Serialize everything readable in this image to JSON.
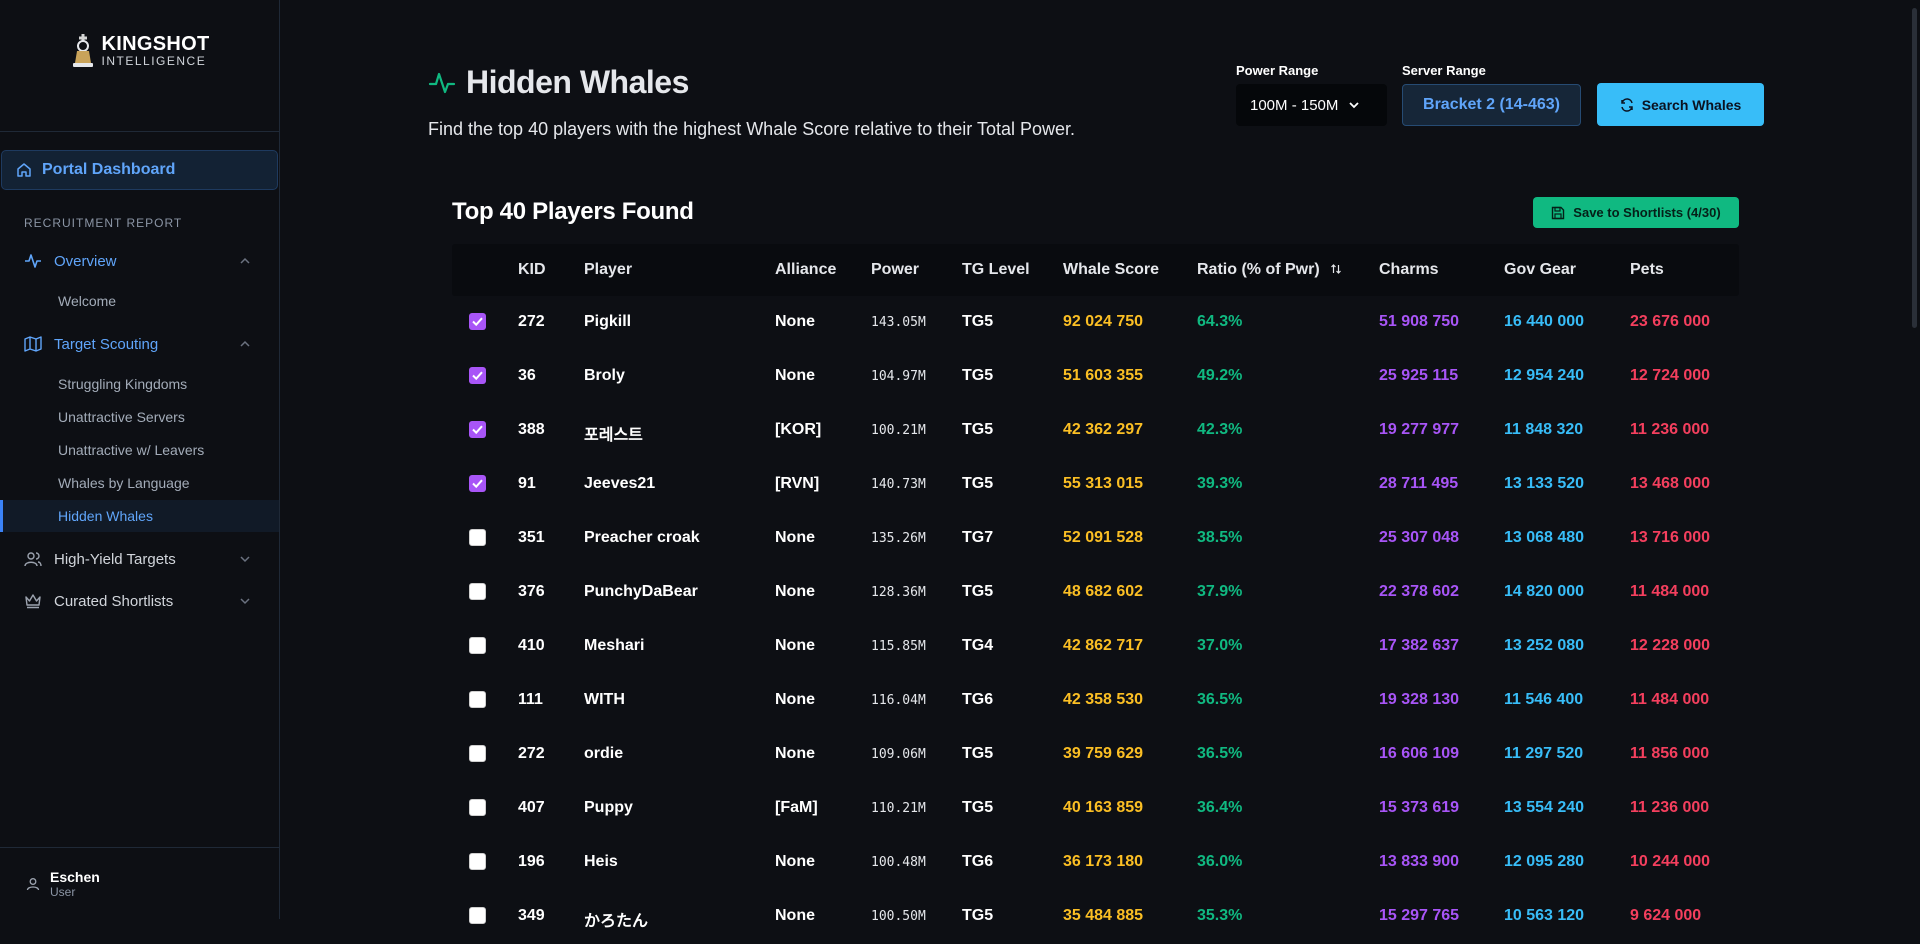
{
  "logo": {
    "title": "KINGSHOT",
    "subtitle": "INTELLIGENCE"
  },
  "sidebar": {
    "portal": "Portal Dashboard",
    "section": "RECRUITMENT REPORT",
    "overview": {
      "label": "Overview",
      "items": [
        "Welcome"
      ]
    },
    "scouting": {
      "label": "Target Scouting",
      "items": [
        "Struggling Kingdoms",
        "Unattractive Servers",
        "Unattractive w/ Leavers",
        "Whales by Language",
        "Hidden Whales"
      ]
    },
    "high_yield": "High-Yield Targets",
    "curated": "Curated Shortlists"
  },
  "user": {
    "name": "Eschen",
    "role": "User"
  },
  "page": {
    "title": "Hidden Whales",
    "subtitle": "Find the top 40 players with the highest Whale Score relative to their Total Power."
  },
  "controls": {
    "power_label": "Power Range",
    "power_value": "100M - 150M",
    "server_label": "Server Range",
    "server_value": "Bracket 2 (14-463)",
    "search_label": "Search Whales"
  },
  "results": {
    "title": "Top 40 Players Found",
    "save_label": "Save to Shortlists (4/30)"
  },
  "table": {
    "headers": {
      "kid": "KID",
      "player": "Player",
      "alliance": "Alliance",
      "power": "Power",
      "tg": "TG Level",
      "whale": "Whale Score",
      "ratio": "Ratio (% of Pwr)",
      "charms": "Charms",
      "gov": "Gov Gear",
      "pets": "Pets"
    },
    "rows": [
      {
        "checked": true,
        "kid": "272",
        "player": "Pigkill",
        "alliance": "None",
        "power": "143.05M",
        "tg": "TG5",
        "whale": "92 024 750",
        "ratio": "64.3%",
        "charms": "51 908 750",
        "gov": "16 440 000",
        "pets": "23 676 000"
      },
      {
        "checked": true,
        "kid": "36",
        "player": "Broly",
        "alliance": "None",
        "power": "104.97M",
        "tg": "TG5",
        "whale": "51 603 355",
        "ratio": "49.2%",
        "charms": "25 925 115",
        "gov": "12 954 240",
        "pets": "12 724 000"
      },
      {
        "checked": true,
        "kid": "388",
        "player": "포레스트",
        "alliance": "[KOR]",
        "power": "100.21M",
        "tg": "TG5",
        "whale": "42 362 297",
        "ratio": "42.3%",
        "charms": "19 277 977",
        "gov": "11 848 320",
        "pets": "11 236 000"
      },
      {
        "checked": true,
        "kid": "91",
        "player": "Jeeves21",
        "alliance": "[RVN]",
        "power": "140.73M",
        "tg": "TG5",
        "whale": "55 313 015",
        "ratio": "39.3%",
        "charms": "28 711 495",
        "gov": "13 133 520",
        "pets": "13 468 000"
      },
      {
        "checked": false,
        "kid": "351",
        "player": "Preacher croak",
        "alliance": "None",
        "power": "135.26M",
        "tg": "TG7",
        "whale": "52 091 528",
        "ratio": "38.5%",
        "charms": "25 307 048",
        "gov": "13 068 480",
        "pets": "13 716 000"
      },
      {
        "checked": false,
        "kid": "376",
        "player": "PunchyDaBear",
        "alliance": "None",
        "power": "128.36M",
        "tg": "TG5",
        "whale": "48 682 602",
        "ratio": "37.9%",
        "charms": "22 378 602",
        "gov": "14 820 000",
        "pets": "11 484 000"
      },
      {
        "checked": false,
        "kid": "410",
        "player": "Meshari",
        "alliance": "None",
        "power": "115.85M",
        "tg": "TG4",
        "whale": "42 862 717",
        "ratio": "37.0%",
        "charms": "17 382 637",
        "gov": "13 252 080",
        "pets": "12 228 000"
      },
      {
        "checked": false,
        "kid": "111",
        "player": "WITH",
        "alliance": "None",
        "power": "116.04M",
        "tg": "TG6",
        "whale": "42 358 530",
        "ratio": "36.5%",
        "charms": "19 328 130",
        "gov": "11 546 400",
        "pets": "11 484 000"
      },
      {
        "checked": false,
        "kid": "272",
        "player": "ordie",
        "alliance": "None",
        "power": "109.06M",
        "tg": "TG5",
        "whale": "39 759 629",
        "ratio": "36.5%",
        "charms": "16 606 109",
        "gov": "11 297 520",
        "pets": "11 856 000"
      },
      {
        "checked": false,
        "kid": "407",
        "player": "Puppy",
        "alliance": "[FaM]",
        "power": "110.21M",
        "tg": "TG5",
        "whale": "40 163 859",
        "ratio": "36.4%",
        "charms": "15 373 619",
        "gov": "13 554 240",
        "pets": "11 236 000"
      },
      {
        "checked": false,
        "kid": "196",
        "player": "Heis",
        "alliance": "None",
        "power": "100.48M",
        "tg": "TG6",
        "whale": "36 173 180",
        "ratio": "36.0%",
        "charms": "13 833 900",
        "gov": "12 095 280",
        "pets": "10 244 000"
      },
      {
        "checked": false,
        "kid": "349",
        "player": "かろたん",
        "alliance": "None",
        "power": "100.50M",
        "tg": "TG5",
        "whale": "35 484 885",
        "ratio": "35.3%",
        "charms": "15 297 765",
        "gov": "10 563 120",
        "pets": "9 624 000"
      }
    ]
  }
}
